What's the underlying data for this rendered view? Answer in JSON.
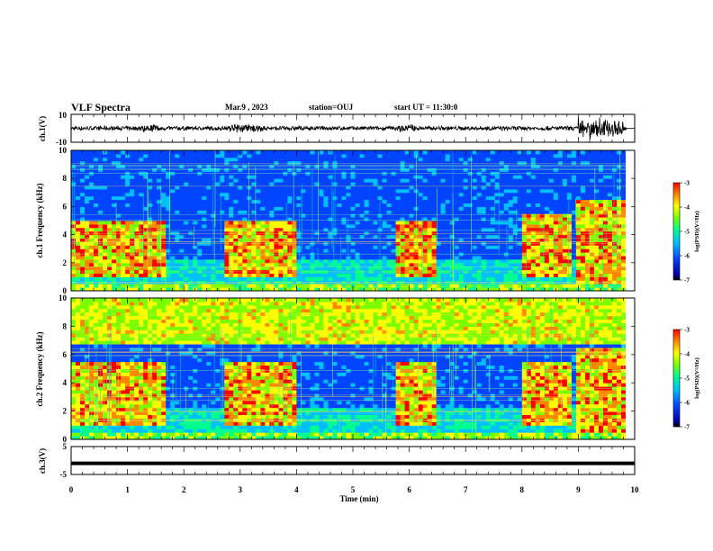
{
  "header": {
    "title": "VLF Spectra",
    "date": "Mar.9 , 2023",
    "station": "station=OUJ",
    "start": "start UT = 11:30:0"
  },
  "colors": {
    "colormap": [
      "#0000aa",
      "#0044ff",
      "#00c0ff",
      "#00ff90",
      "#7cff00",
      "#ffff00",
      "#ff8800",
      "#ff0000"
    ],
    "waveform": "#000000",
    "axis": "#000000"
  },
  "chart_data": [
    {
      "type": "line",
      "name": "ch1-waveform",
      "ylabel": "ch.1(V)",
      "ylim": [
        -10,
        10
      ],
      "yticks": [
        "10",
        "-10"
      ],
      "xlim": [
        0,
        10
      ],
      "burst_intervals_min": [
        [
          1.2,
          1.6
        ],
        [
          2.8,
          3.4
        ],
        [
          5.8,
          6.1
        ],
        [
          9.0,
          9.8
        ]
      ]
    },
    {
      "type": "heatmap",
      "name": "ch1-spectrogram",
      "ylabel": "ch.1 Frequency (kHz)",
      "ylim": [
        0,
        10
      ],
      "yticks": [
        "0",
        "2",
        "4",
        "6",
        "8",
        "10"
      ],
      "xlim": [
        0,
        10
      ],
      "colorbar": {
        "label": "log(PSD)(V²/Hz)",
        "range": [
          -7,
          -3
        ],
        "ticks": [
          "-3",
          "-4",
          "-5",
          "-6",
          "-7"
        ]
      },
      "bright_bands": [
        {
          "t": [
            0,
            1.65
          ],
          "f": [
            1.0,
            4.9
          ]
        },
        {
          "t": [
            2.75,
            4.0
          ],
          "f": [
            1.0,
            4.9
          ]
        },
        {
          "t": [
            5.8,
            6.45
          ],
          "f": [
            1.0,
            4.9
          ]
        },
        {
          "t": [
            8.0,
            8.9
          ],
          "f": [
            1.0,
            5.5
          ]
        },
        {
          "t": [
            9.0,
            9.85
          ],
          "f": [
            0.5,
            6.5
          ]
        }
      ]
    },
    {
      "type": "heatmap",
      "name": "ch2-spectrogram",
      "ylabel": "ch.2 Frequency (kHz)",
      "ylim": [
        0,
        10
      ],
      "yticks": [
        "0",
        "2",
        "4",
        "6",
        "8",
        "10"
      ],
      "xlim": [
        0,
        10
      ],
      "colorbar": {
        "label": "log(PSD)(V²/Hz)",
        "range": [
          -7,
          -3
        ],
        "ticks": [
          "-3",
          "-4",
          "-5",
          "-6",
          "-7"
        ]
      },
      "high_freq_band_kHz": [
        6.8,
        10
      ],
      "bright_bands": [
        {
          "t": [
            0,
            1.65
          ],
          "f": [
            1.0,
            5.5
          ]
        },
        {
          "t": [
            2.75,
            4.0
          ],
          "f": [
            1.0,
            5.5
          ]
        },
        {
          "t": [
            5.8,
            6.45
          ],
          "f": [
            1.0,
            5.5
          ]
        },
        {
          "t": [
            8.0,
            8.9
          ],
          "f": [
            1.0,
            5.5
          ]
        },
        {
          "t": [
            9.0,
            9.85
          ],
          "f": [
            0.5,
            6.5
          ]
        }
      ]
    },
    {
      "type": "line",
      "name": "ch3-trace",
      "ylabel": "ch.3(V)",
      "ylim": [
        -5,
        5
      ],
      "yticks": [
        "5",
        "-5"
      ],
      "xlim": [
        0,
        10
      ],
      "level_V": -1
    }
  ],
  "xaxis": {
    "label": "Time (min)",
    "ticks": [
      "0",
      "1",
      "2",
      "3",
      "4",
      "5",
      "6",
      "7",
      "8",
      "9",
      "10"
    ]
  }
}
